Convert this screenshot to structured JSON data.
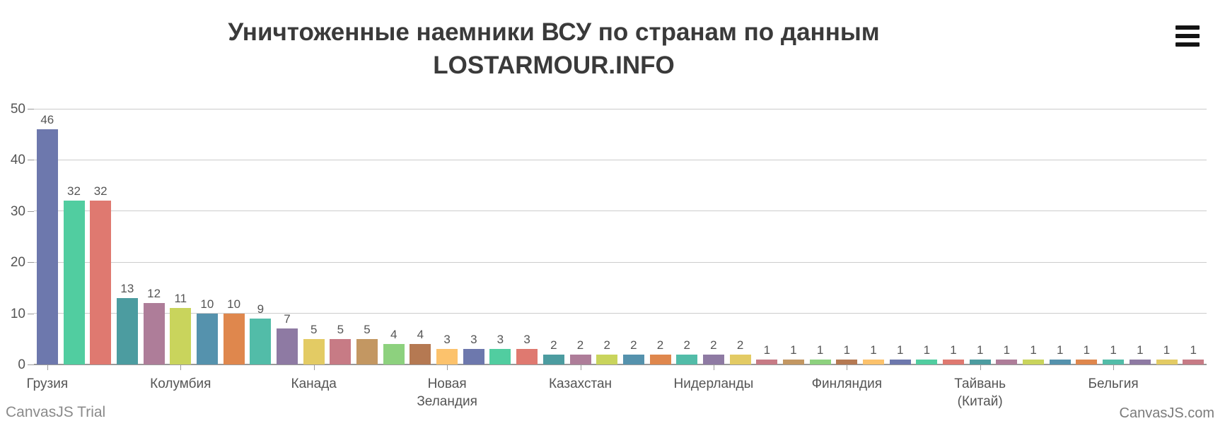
{
  "title": {
    "text": "Уничтоженные наемники ВСУ по странам по данным LOSTARMOUR.INFO",
    "line1": "Уничтоженные наемники ВСУ по странам по данным",
    "line2": "LOSTARMOUR.INFO"
  },
  "toolbar": {
    "menu_icon": "hamburger-menu-icon"
  },
  "watermarks": {
    "bottom_left": "CanvasJS Trial",
    "bottom_right": "CanvasJS.com"
  },
  "chart_data": {
    "type": "bar",
    "title": "Уничтоженные наемники ВСУ по странам по данным LOSTARMOUR.INFO",
    "xlabel": "",
    "ylabel": "",
    "ylim": [
      0,
      50
    ],
    "grid": true,
    "legend_position": "none",
    "label_interval": 5,
    "y_ticks": [
      0,
      10,
      20,
      30,
      40,
      50
    ],
    "values": [
      46,
      32,
      32,
      13,
      12,
      11,
      10,
      10,
      9,
      7,
      5,
      5,
      5,
      4,
      4,
      3,
      3,
      3,
      3,
      2,
      2,
      2,
      2,
      2,
      2,
      2,
      2,
      1,
      1,
      1,
      1,
      1,
      1,
      1,
      1,
      1,
      1,
      1,
      1,
      1,
      1,
      1,
      1,
      1
    ],
    "categories": [
      "Грузия",
      "",
      "",
      "",
      "",
      "Колумбия",
      "",
      "",
      "",
      "",
      "Канада",
      "",
      "",
      "",
      "",
      "Новая Зеландия",
      "",
      "",
      "",
      "",
      "Казахстан",
      "",
      "",
      "",
      "",
      "Нидерланды",
      "",
      "",
      "",
      "",
      "Финляндия",
      "",
      "",
      "",
      "",
      "Тайвань (Китай)",
      "",
      "",
      "",
      "",
      "Бельгия",
      "",
      "",
      ""
    ],
    "visible_category_labels": [
      {
        "index": 0,
        "label": "Грузия",
        "value": 46
      },
      {
        "index": 5,
        "label": "Колумбия",
        "value": 11
      },
      {
        "index": 10,
        "label": "Канада",
        "value": 5
      },
      {
        "index": 15,
        "label": "Новая Зеландия",
        "value": 3
      },
      {
        "index": 20,
        "label": "Казахстан",
        "value": 2
      },
      {
        "index": 25,
        "label": "Нидерланды",
        "value": 2
      },
      {
        "index": 30,
        "label": "Финляндия",
        "value": 1
      },
      {
        "index": 35,
        "label": "Тайвань (Китай)",
        "value": 1
      },
      {
        "index": 40,
        "label": "Бельгия",
        "value": 1
      }
    ],
    "palette": [
      "#6D78AD",
      "#51CDA0",
      "#DF7970",
      "#4C9CA0",
      "#AE7D99",
      "#C9D45C",
      "#5592AD",
      "#DF874D",
      "#52BCA8",
      "#8E7AA3",
      "#E3CB64",
      "#C77B85",
      "#C39762",
      "#8DD17E",
      "#B57952",
      "#FCC26C"
    ],
    "colors_note": "bar color = palette[index % 16]",
    "title_color": "#3a3a3a",
    "label_color": "#555555",
    "gridline_color": "#cccccc",
    "axis_color": "#999999",
    "background_color": "#ffffff"
  }
}
